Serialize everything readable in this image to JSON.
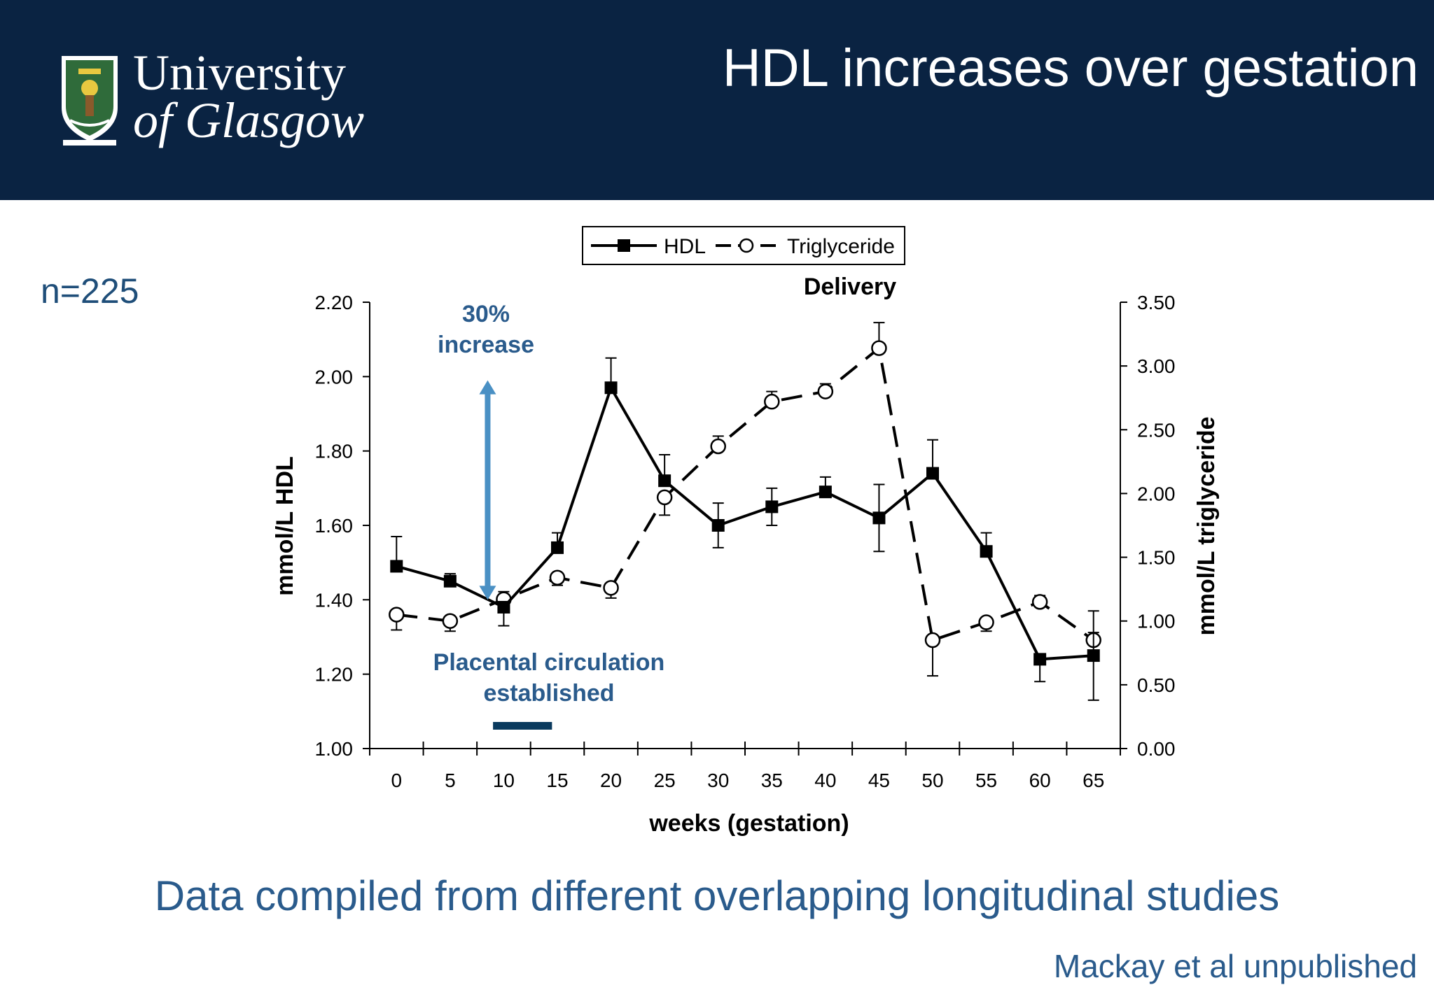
{
  "header": {
    "logo_line1": "University",
    "logo_line2": "of Glasgow",
    "title": "HDL increases over gestation"
  },
  "n_label": "n=225",
  "subtitle": "Data compiled from different overlapping longitudinal studies",
  "citation": "Mackay et al unpublished",
  "colors": {
    "header_bg": "#0a2342",
    "annotation": "#2a5b8c",
    "arrow": "#4a90c4",
    "bar": "#0a3a5e"
  },
  "chart_data": {
    "type": "line",
    "xlabel": "weeks (gestation)",
    "ylabel": "mmol/L HDL",
    "y2label": "mmol/L triglyceride",
    "x": [
      0,
      5,
      10,
      15,
      20,
      25,
      30,
      35,
      40,
      45,
      50,
      55,
      60,
      65
    ],
    "xlim": [
      -2.5,
      67.5
    ],
    "ylim": [
      1.0,
      2.2
    ],
    "y2lim": [
      0.0,
      3.5
    ],
    "yticks": [
      "1.00",
      "1.20",
      "1.40",
      "1.60",
      "1.80",
      "2.00",
      "2.20"
    ],
    "y2ticks": [
      "0.00",
      "0.50",
      "1.00",
      "1.50",
      "2.00",
      "2.50",
      "3.00",
      "3.50"
    ],
    "xticks": [
      "0",
      "5",
      "10",
      "15",
      "20",
      "25",
      "30",
      "35",
      "40",
      "45",
      "50",
      "55",
      "60",
      "65"
    ],
    "legend": {
      "position": "top-center",
      "entries": [
        "HDL",
        "Triglyceride"
      ]
    },
    "series": [
      {
        "name": "HDL",
        "axis": "left",
        "style": "solid, filled square markers",
        "values": [
          1.49,
          1.45,
          1.38,
          1.54,
          1.97,
          1.72,
          1.6,
          1.65,
          1.69,
          1.62,
          1.74,
          1.53,
          1.24,
          1.25
        ],
        "error": [
          0.08,
          0.02,
          0.05,
          0.04,
          0.08,
          0.07,
          0.06,
          0.05,
          0.04,
          0.09,
          0.09,
          0.05,
          0.06,
          0.12
        ]
      },
      {
        "name": "Triglyceride",
        "axis": "right",
        "style": "dashed, open circle markers",
        "values": [
          1.05,
          1.0,
          1.17,
          1.34,
          1.26,
          1.97,
          2.37,
          2.72,
          2.8,
          3.14,
          0.85,
          0.99,
          1.15,
          0.85
        ],
        "error": [
          0.12,
          0.08,
          0.06,
          0.06,
          0.08,
          0.14,
          0.08,
          0.08,
          0.06,
          0.2,
          0.28,
          0.07,
          0.05,
          0.06
        ],
        "error_dir": [
          "down",
          "down",
          "up",
          "down",
          "down",
          "down",
          "up",
          "up",
          "up",
          "up",
          "down",
          "down",
          "up",
          "up"
        ]
      }
    ],
    "annotations": {
      "delivery": "Delivery",
      "increase_line1": "30%",
      "increase_line2": "increase",
      "placenta_line1": "Placental circulation",
      "placenta_line2": "established",
      "arrow_from_hdl": 1.4,
      "arrow_to_hdl": 1.99,
      "arrow_week": 8.5,
      "placenta_bar_weeks": [
        9,
        14.5
      ]
    }
  }
}
